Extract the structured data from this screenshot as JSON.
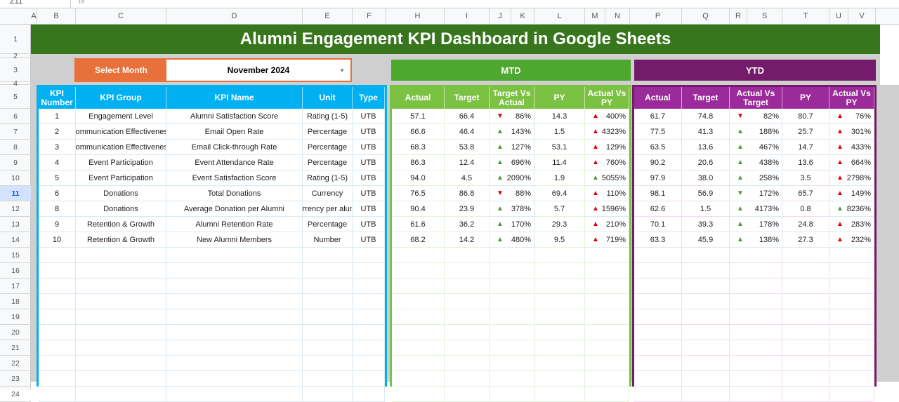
{
  "formula_bar": {
    "name_box": "Z11",
    "fx_icon": "function-icon"
  },
  "columns": [
    "A",
    "B",
    "C",
    "D",
    "E",
    "F",
    "H",
    "I",
    "J",
    "K",
    "L",
    "M",
    "N",
    "P",
    "Q",
    "R",
    "S",
    "T",
    "U",
    "V"
  ],
  "rows": [
    "1",
    "2",
    "3",
    "4",
    "5",
    "6",
    "7",
    "8",
    "9",
    "10",
    "11",
    "12",
    "13",
    "14",
    "15",
    "16",
    "17",
    "18",
    "19",
    "20",
    "21",
    "22",
    "23",
    "24"
  ],
  "selected_row": "11",
  "title": "Alumni Engagement KPI Dashboard in Google Sheets",
  "select_month": {
    "label": "Select Month",
    "value": "November 2024"
  },
  "mtd_label": "MTD",
  "ytd_label": "YTD",
  "kpi_headers": [
    "KPI Number",
    "KPI Group",
    "KPI Name",
    "Unit",
    "Type"
  ],
  "mtd_headers": [
    "Actual",
    "Target",
    "Target Vs Actual",
    "PY",
    "Actual Vs PY"
  ],
  "ytd_headers": [
    "Actual",
    "Target",
    "Actual Vs Target",
    "PY",
    "Actual Vs PY"
  ],
  "colors": {
    "title": "#38761d",
    "select": "#e8703a",
    "kpi_header": "#00b0f0",
    "mtd_band": "#4ea72e",
    "mtd_header": "#7cc242",
    "ytd_band": "#741b6b",
    "ytd_header": "#9b2a9b",
    "arrow_green": "#4a9a35",
    "arrow_red": "#e00000"
  },
  "kpis": [
    {
      "num": "1",
      "group": "Engagement Level",
      "name": "Alumni Satisfaction Score",
      "unit": "Rating (1-5)",
      "type": "UTB",
      "mtd": {
        "actual": "57.1",
        "target": "66.4",
        "tva": {
          "value": "86%",
          "arrow": "down",
          "color": "red"
        },
        "py": "14.3",
        "avp": {
          "value": "400%",
          "arrow": "up",
          "color": "red"
        }
      },
      "ytd": {
        "actual": "61.7",
        "target": "74.8",
        "avt": {
          "value": "82%",
          "arrow": "down",
          "color": "red"
        },
        "py": "80.7",
        "avp": {
          "value": "76%",
          "arrow": "up",
          "color": "red"
        }
      }
    },
    {
      "num": "2",
      "group": "Communication Effectiveness",
      "name": "Email Open Rate",
      "unit": "Percentage",
      "type": "UTB",
      "mtd": {
        "actual": "66.6",
        "target": "46.4",
        "tva": {
          "value": "143%",
          "arrow": "up",
          "color": "green"
        },
        "py": "1.5",
        "avp": {
          "value": "4323%",
          "arrow": "up",
          "color": "red"
        }
      },
      "ytd": {
        "actual": "77.5",
        "target": "41.3",
        "avt": {
          "value": "188%",
          "arrow": "up",
          "color": "green"
        },
        "py": "25.7",
        "avp": {
          "value": "301%",
          "arrow": "up",
          "color": "red"
        }
      }
    },
    {
      "num": "3",
      "group": "Communication Effectiveness",
      "name": "Email Click-through Rate",
      "unit": "Percentage",
      "type": "UTB",
      "mtd": {
        "actual": "68.3",
        "target": "53.8",
        "tva": {
          "value": "127%",
          "arrow": "up",
          "color": "green"
        },
        "py": "53.1",
        "avp": {
          "value": "129%",
          "arrow": "up",
          "color": "red"
        }
      },
      "ytd": {
        "actual": "63.5",
        "target": "13.6",
        "avt": {
          "value": "467%",
          "arrow": "up",
          "color": "green"
        },
        "py": "14.7",
        "avp": {
          "value": "433%",
          "arrow": "up",
          "color": "red"
        }
      }
    },
    {
      "num": "4",
      "group": "Event Participation",
      "name": "Event Attendance Rate",
      "unit": "Percentage",
      "type": "UTB",
      "mtd": {
        "actual": "86.3",
        "target": "12.4",
        "tva": {
          "value": "696%",
          "arrow": "up",
          "color": "green"
        },
        "py": "11.4",
        "avp": {
          "value": "760%",
          "arrow": "up",
          "color": "red"
        }
      },
      "ytd": {
        "actual": "90.2",
        "target": "20.6",
        "avt": {
          "value": "438%",
          "arrow": "up",
          "color": "green"
        },
        "py": "13.6",
        "avp": {
          "value": "664%",
          "arrow": "up",
          "color": "red"
        }
      }
    },
    {
      "num": "5",
      "group": "Event Participation",
      "name": "Event Satisfaction Score",
      "unit": "Rating (1-5)",
      "type": "UTB",
      "mtd": {
        "actual": "94.0",
        "target": "4.5",
        "tva": {
          "value": "2090%",
          "arrow": "up",
          "color": "green"
        },
        "py": "1.9",
        "avp": {
          "value": "5055%",
          "arrow": "up",
          "color": "green"
        }
      },
      "ytd": {
        "actual": "97.9",
        "target": "38.0",
        "avt": {
          "value": "258%",
          "arrow": "up",
          "color": "green"
        },
        "py": "3.5",
        "avp": {
          "value": "2798%",
          "arrow": "up",
          "color": "red"
        }
      }
    },
    {
      "num": "6",
      "group": "Donations",
      "name": "Total Donations",
      "unit": "Currency",
      "type": "UTB",
      "mtd": {
        "actual": "76.5",
        "target": "86.8",
        "tva": {
          "value": "88%",
          "arrow": "down",
          "color": "red"
        },
        "py": "69.4",
        "avp": {
          "value": "110%",
          "arrow": "up",
          "color": "red"
        }
      },
      "ytd": {
        "actual": "98.1",
        "target": "56.9",
        "avt": {
          "value": "172%",
          "arrow": "down",
          "color": "green"
        },
        "py": "65.7",
        "avp": {
          "value": "149%",
          "arrow": "up",
          "color": "red"
        }
      }
    },
    {
      "num": "8",
      "group": "Donations",
      "name": "Average Donation per Alumni",
      "unit": "Currency per alumni",
      "type": "UTB",
      "mtd": {
        "actual": "90.4",
        "target": "23.9",
        "tva": {
          "value": "378%",
          "arrow": "up",
          "color": "green"
        },
        "py": "5.7",
        "avp": {
          "value": "1596%",
          "arrow": "up",
          "color": "red"
        }
      },
      "ytd": {
        "actual": "62.6",
        "target": "1.5",
        "avt": {
          "value": "4173%",
          "arrow": "up",
          "color": "green"
        },
        "py": "0.8",
        "avp": {
          "value": "8236%",
          "arrow": "up",
          "color": "green"
        }
      }
    },
    {
      "num": "9",
      "group": "Retention & Growth",
      "name": "Alumni Retention Rate",
      "unit": "Percentage",
      "type": "UTB",
      "mtd": {
        "actual": "61.6",
        "target": "36.2",
        "tva": {
          "value": "170%",
          "arrow": "up",
          "color": "green"
        },
        "py": "29.3",
        "avp": {
          "value": "210%",
          "arrow": "up",
          "color": "red"
        }
      },
      "ytd": {
        "actual": "70.1",
        "target": "39.3",
        "avt": {
          "value": "178%",
          "arrow": "up",
          "color": "green"
        },
        "py": "24.8",
        "avp": {
          "value": "283%",
          "arrow": "up",
          "color": "red"
        }
      }
    },
    {
      "num": "10",
      "group": "Retention & Growth",
      "name": "New Alumni Members",
      "unit": "Number",
      "type": "UTB",
      "mtd": {
        "actual": "68.2",
        "target": "14.2",
        "tva": {
          "value": "480%",
          "arrow": "up",
          "color": "green"
        },
        "py": "9.5",
        "avp": {
          "value": "719%",
          "arrow": "up",
          "color": "red"
        }
      },
      "ytd": {
        "actual": "63.3",
        "target": "45.9",
        "avt": {
          "value": "138%",
          "arrow": "up",
          "color": "green"
        },
        "py": "27.3",
        "avp": {
          "value": "232%",
          "arrow": "up",
          "color": "red"
        }
      }
    }
  ]
}
